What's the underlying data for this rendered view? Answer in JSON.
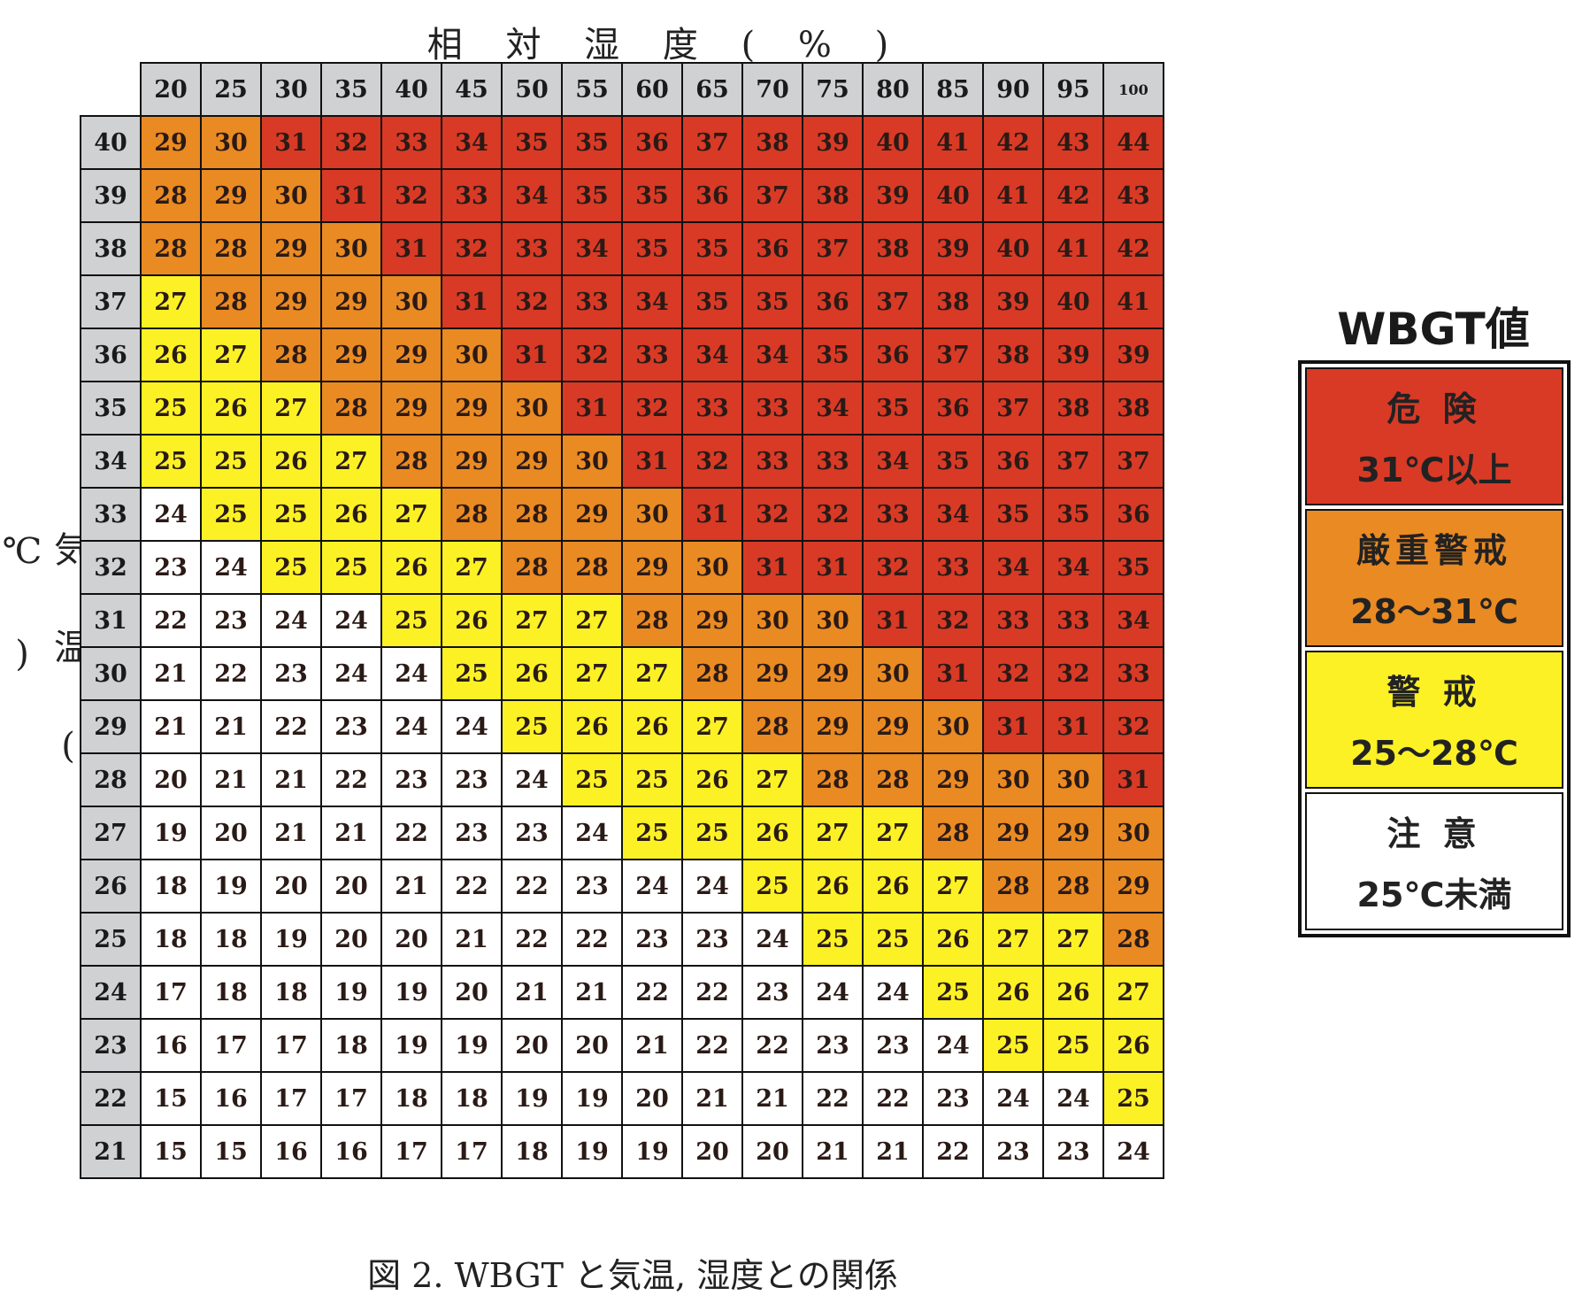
{
  "chart_data": {
    "type": "heatmap",
    "xlabel": "相 対 湿 度 ( % )",
    "ylabel": "気 温 ( ℃ )",
    "x": [
      "20",
      "25",
      "30",
      "35",
      "40",
      "45",
      "50",
      "55",
      "60",
      "65",
      "70",
      "75",
      "80",
      "85",
      "90",
      "95",
      "100"
    ],
    "y": [
      "40",
      "39",
      "38",
      "37",
      "36",
      "35",
      "34",
      "33",
      "32",
      "31",
      "30",
      "29",
      "28",
      "27",
      "26",
      "25",
      "24",
      "23",
      "22",
      "21"
    ],
    "values": [
      [
        29,
        30,
        31,
        32,
        33,
        34,
        35,
        35,
        36,
        37,
        38,
        39,
        40,
        41,
        42,
        43,
        44
      ],
      [
        28,
        29,
        30,
        31,
        32,
        33,
        34,
        35,
        35,
        36,
        37,
        38,
        39,
        40,
        41,
        42,
        43
      ],
      [
        28,
        28,
        29,
        30,
        31,
        32,
        33,
        34,
        35,
        35,
        36,
        37,
        38,
        39,
        40,
        41,
        42
      ],
      [
        27,
        28,
        29,
        29,
        30,
        31,
        32,
        33,
        34,
        35,
        35,
        36,
        37,
        38,
        39,
        40,
        41
      ],
      [
        26,
        27,
        28,
        29,
        29,
        30,
        31,
        32,
        33,
        34,
        34,
        35,
        36,
        37,
        38,
        39,
        39
      ],
      [
        25,
        26,
        27,
        28,
        29,
        29,
        30,
        31,
        32,
        33,
        33,
        34,
        35,
        36,
        37,
        38,
        38
      ],
      [
        25,
        25,
        26,
        27,
        28,
        29,
        29,
        30,
        31,
        32,
        33,
        33,
        34,
        35,
        36,
        37,
        37
      ],
      [
        24,
        25,
        25,
        26,
        27,
        28,
        28,
        29,
        30,
        31,
        32,
        32,
        33,
        34,
        35,
        35,
        36
      ],
      [
        23,
        24,
        25,
        25,
        26,
        27,
        28,
        28,
        29,
        30,
        31,
        31,
        32,
        33,
        34,
        34,
        35
      ],
      [
        22,
        23,
        24,
        24,
        25,
        26,
        27,
        27,
        28,
        29,
        30,
        30,
        31,
        32,
        33,
        33,
        34
      ],
      [
        21,
        22,
        23,
        24,
        24,
        25,
        26,
        27,
        27,
        28,
        29,
        29,
        30,
        31,
        32,
        32,
        33
      ],
      [
        21,
        21,
        22,
        23,
        24,
        24,
        25,
        26,
        26,
        27,
        28,
        29,
        29,
        30,
        31,
        31,
        32
      ],
      [
        20,
        21,
        21,
        22,
        23,
        23,
        24,
        25,
        25,
        26,
        27,
        28,
        28,
        29,
        30,
        30,
        31
      ],
      [
        19,
        20,
        21,
        21,
        22,
        23,
        23,
        24,
        25,
        25,
        26,
        27,
        27,
        28,
        29,
        29,
        30
      ],
      [
        18,
        19,
        20,
        20,
        21,
        22,
        22,
        23,
        24,
        24,
        25,
        26,
        26,
        27,
        28,
        28,
        29
      ],
      [
        18,
        18,
        19,
        20,
        20,
        21,
        22,
        22,
        23,
        23,
        24,
        25,
        25,
        26,
        27,
        27,
        28
      ],
      [
        17,
        18,
        18,
        19,
        19,
        20,
        21,
        21,
        22,
        22,
        23,
        24,
        24,
        25,
        26,
        26,
        27
      ],
      [
        16,
        17,
        17,
        18,
        19,
        19,
        20,
        20,
        21,
        22,
        22,
        23,
        23,
        24,
        25,
        25,
        26
      ],
      [
        15,
        16,
        17,
        17,
        18,
        18,
        19,
        19,
        20,
        21,
        21,
        22,
        22,
        23,
        24,
        24,
        25
      ],
      [
        15,
        15,
        16,
        16,
        17,
        17,
        18,
        19,
        19,
        20,
        20,
        21,
        21,
        22,
        23,
        23,
        24
      ]
    ],
    "legend": {
      "title": "WBGT値",
      "placement": "right",
      "items": [
        {
          "name": "危 険",
          "range": "31℃以上",
          "min": 31,
          "color": "#d83a26"
        },
        {
          "name": "厳重警戒",
          "range": "28～31℃",
          "min": 28,
          "color": "#ea8a22"
        },
        {
          "name": "警 戒",
          "range": "25～28℃",
          "min": 25,
          "color": "#fbf124"
        },
        {
          "name": "注 意",
          "range": "25℃未満",
          "min": 0,
          "color": "#ffffff"
        }
      ]
    },
    "caption": "図 2. WBGT と気温,  湿度との関係"
  }
}
